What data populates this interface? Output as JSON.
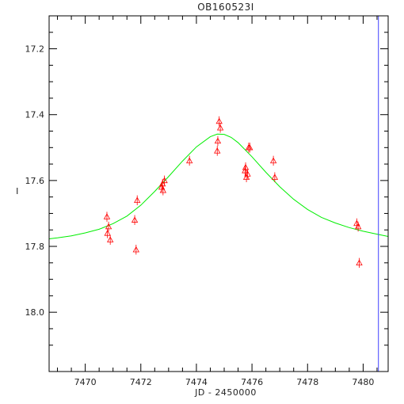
{
  "chart_data": {
    "type": "scatter",
    "title": "OB160523I",
    "xlabel": "JD - 2450000",
    "ylabel": "I",
    "xlim": [
      7468.7,
      7480.9
    ],
    "ylim": [
      18.18,
      17.1
    ],
    "y_inverted": true,
    "x_ticks": [
      7470,
      7472,
      7474,
      7476,
      7478,
      7480
    ],
    "x_tick_labels": [
      "7470",
      "7472",
      "7474",
      "7476",
      "7478",
      "7480"
    ],
    "y_ticks": [
      17.2,
      17.4,
      17.6,
      17.8,
      18.0
    ],
    "y_tick_labels": [
      "17.2",
      "17.4",
      "17.6",
      "17.8",
      "18.0"
    ],
    "vertical_marker_x": 7480.55,
    "grid": false,
    "colors": {
      "data": "#ff0000",
      "model": "#00ee00",
      "marker": "#4040ff",
      "frame": "#000000"
    },
    "series": [
      {
        "kind": "points",
        "marker": "triangle",
        "points": [
          {
            "x": 7470.78,
            "y": 17.71,
            "err": 0.015
          },
          {
            "x": 7470.8,
            "y": 17.76,
            "err": 0.015
          },
          {
            "x": 7470.84,
            "y": 17.74,
            "err": 0.015
          },
          {
            "x": 7470.9,
            "y": 17.78,
            "err": 0.015
          },
          {
            "x": 7471.78,
            "y": 17.72,
            "err": 0.015
          },
          {
            "x": 7471.83,
            "y": 17.81,
            "err": 0.015
          },
          {
            "x": 7471.87,
            "y": 17.66,
            "err": 0.015
          },
          {
            "x": 7472.75,
            "y": 17.62,
            "err": 0.015
          },
          {
            "x": 7472.78,
            "y": 17.61,
            "err": 0.015
          },
          {
            "x": 7472.8,
            "y": 17.63,
            "err": 0.015
          },
          {
            "x": 7472.85,
            "y": 17.6,
            "err": 0.015
          },
          {
            "x": 7473.75,
            "y": 17.54,
            "err": 0.015
          },
          {
            "x": 7474.75,
            "y": 17.51,
            "err": 0.015
          },
          {
            "x": 7474.77,
            "y": 17.48,
            "err": 0.015
          },
          {
            "x": 7474.82,
            "y": 17.42,
            "err": 0.015
          },
          {
            "x": 7474.86,
            "y": 17.44,
            "err": 0.015
          },
          {
            "x": 7475.75,
            "y": 17.57,
            "err": 0.015
          },
          {
            "x": 7475.77,
            "y": 17.56,
            "err": 0.015
          },
          {
            "x": 7475.8,
            "y": 17.59,
            "err": 0.015
          },
          {
            "x": 7475.84,
            "y": 17.58,
            "err": 0.015
          },
          {
            "x": 7475.88,
            "y": 17.5,
            "err": 0.015
          },
          {
            "x": 7475.92,
            "y": 17.5,
            "err": 0.015
          },
          {
            "x": 7476.77,
            "y": 17.54,
            "err": 0.015
          },
          {
            "x": 7476.82,
            "y": 17.59,
            "err": 0.015
          },
          {
            "x": 7479.77,
            "y": 17.73,
            "err": 0.015
          },
          {
            "x": 7479.82,
            "y": 17.74,
            "err": 0.015
          },
          {
            "x": 7479.86,
            "y": 17.85,
            "err": 0.015
          }
        ]
      },
      {
        "kind": "line",
        "curve": [
          {
            "x": 7468.7,
            "y": 17.777
          },
          {
            "x": 7469.0,
            "y": 17.774
          },
          {
            "x": 7469.5,
            "y": 17.768
          },
          {
            "x": 7470.0,
            "y": 17.759
          },
          {
            "x": 7470.5,
            "y": 17.748
          },
          {
            "x": 7471.0,
            "y": 17.731
          },
          {
            "x": 7471.5,
            "y": 17.708
          },
          {
            "x": 7472.0,
            "y": 17.675
          },
          {
            "x": 7472.5,
            "y": 17.633
          },
          {
            "x": 7473.0,
            "y": 17.588
          },
          {
            "x": 7473.5,
            "y": 17.541
          },
          {
            "x": 7474.0,
            "y": 17.498
          },
          {
            "x": 7474.5,
            "y": 17.467
          },
          {
            "x": 7474.75,
            "y": 17.459
          },
          {
            "x": 7475.0,
            "y": 17.46
          },
          {
            "x": 7475.25,
            "y": 17.469
          },
          {
            "x": 7475.5,
            "y": 17.485
          },
          {
            "x": 7476.0,
            "y": 17.528
          },
          {
            "x": 7476.5,
            "y": 17.575
          },
          {
            "x": 7477.0,
            "y": 17.619
          },
          {
            "x": 7477.5,
            "y": 17.657
          },
          {
            "x": 7478.0,
            "y": 17.688
          },
          {
            "x": 7478.5,
            "y": 17.712
          },
          {
            "x": 7479.0,
            "y": 17.729
          },
          {
            "x": 7479.5,
            "y": 17.743
          },
          {
            "x": 7480.0,
            "y": 17.754
          },
          {
            "x": 7480.5,
            "y": 17.763
          },
          {
            "x": 7480.9,
            "y": 17.77
          }
        ]
      }
    ]
  }
}
